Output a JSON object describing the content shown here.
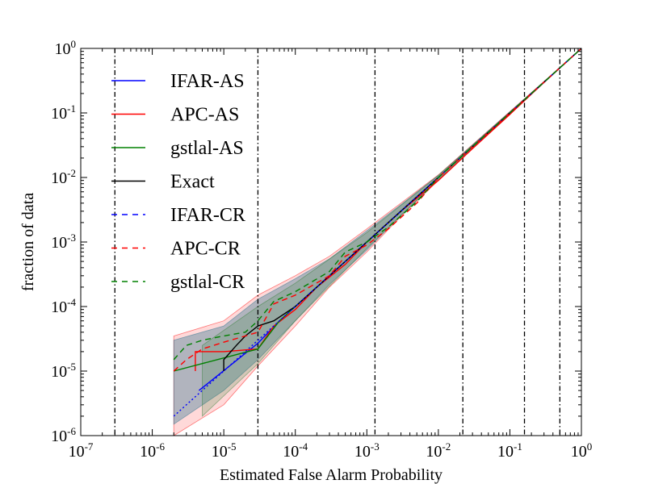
{
  "chart_data": {
    "type": "line",
    "title": "",
    "xlabel": "Estimated False Alarm Probability",
    "ylabel": "fraction of data",
    "xscale": "log",
    "yscale": "log",
    "xlim": [
      1e-07,
      1
    ],
    "ylim": [
      1e-06,
      1
    ],
    "grid": false,
    "legend_position": "upper-left",
    "x_ticks": [
      {
        "base": "10",
        "exp": "-7",
        "value": 1e-07
      },
      {
        "base": "10",
        "exp": "-6",
        "value": 1e-06
      },
      {
        "base": "10",
        "exp": "-5",
        "value": 1e-05
      },
      {
        "base": "10",
        "exp": "-4",
        "value": 0.0001
      },
      {
        "base": "10",
        "exp": "-3",
        "value": 0.001
      },
      {
        "base": "10",
        "exp": "-2",
        "value": 0.01
      },
      {
        "base": "10",
        "exp": "-1",
        "value": 0.1
      },
      {
        "base": "10",
        "exp": "0",
        "value": 1
      }
    ],
    "y_ticks": [
      {
        "base": "10",
        "exp": "-6",
        "value": 1e-06
      },
      {
        "base": "10",
        "exp": "-5",
        "value": 1e-05
      },
      {
        "base": "10",
        "exp": "-4",
        "value": 0.0001
      },
      {
        "base": "10",
        "exp": "-3",
        "value": 0.001
      },
      {
        "base": "10",
        "exp": "-2",
        "value": 0.01
      },
      {
        "base": "10",
        "exp": "-1",
        "value": 0.1
      },
      {
        "base": "10",
        "exp": "0",
        "value": 1
      }
    ],
    "vertical_lines": [
      3e-07,
      3e-05,
      0.0013,
      0.022,
      0.16,
      0.5
    ],
    "series": [
      {
        "name": "IFAR-AS",
        "color": "#0000ff",
        "dash": "solid",
        "x": [
          4.5e-06,
          3e-05,
          6e-05,
          0.0001,
          0.0002,
          0.0005,
          0.001,
          0.003,
          0.01,
          0.03,
          0.1,
          0.3,
          1
        ],
        "y": [
          5e-06,
          2.7e-05,
          6e-05,
          0.0001,
          0.0002,
          0.0005,
          0.001,
          0.003,
          0.01,
          0.03,
          0.1,
          0.3,
          1
        ]
      },
      {
        "name": "APC-AS",
        "color": "#ff0000",
        "dash": "solid",
        "x": [
          4e-06,
          4e-06,
          1e-05,
          3e-05,
          5e-05,
          0.0001,
          0.0002,
          0.0005,
          0.001,
          0.003,
          0.01,
          0.03,
          0.1,
          0.3,
          1
        ],
        "y": [
          1e-05,
          2e-05,
          2e-05,
          2.2e-05,
          5e-05,
          9e-05,
          0.0002,
          0.00045,
          0.001,
          0.003,
          0.009,
          0.028,
          0.095,
          0.3,
          1
        ]
      },
      {
        "name": "gstlal-AS",
        "color": "#008000",
        "dash": "solid",
        "x": [
          2e-06,
          3e-05,
          6e-05,
          0.0001,
          0.0002,
          0.0005,
          0.001,
          0.003,
          0.01,
          0.03,
          0.1,
          0.3,
          1
        ],
        "y": [
          1e-05,
          2.2e-05,
          6e-05,
          0.0001,
          0.0002,
          0.0005,
          0.001,
          0.003,
          0.01,
          0.03,
          0.1,
          0.3,
          1
        ]
      },
      {
        "name": "Exact",
        "color": "#000000",
        "dash": "solid",
        "x": [
          1e-05,
          1e-05,
          1.5e-05,
          2e-05,
          3e-05,
          5e-05,
          0.0001,
          0.0002,
          0.0005,
          0.001,
          0.003,
          0.01,
          0.03,
          0.1,
          0.3,
          1
        ],
        "y": [
          1e-05,
          1.5e-05,
          2.5e-05,
          3.5e-05,
          5e-05,
          6e-05,
          0.0001,
          0.0002,
          0.0005,
          0.001,
          0.003,
          0.01,
          0.03,
          0.1,
          0.3,
          1
        ]
      },
      {
        "name": "IFAR-CR",
        "color": "#0000ff",
        "dash": "dotted",
        "x": [
          2e-06,
          1e-05,
          3e-05,
          0.0001,
          0.001,
          0.01,
          0.1,
          1
        ],
        "y": [
          2e-06,
          1e-05,
          3e-05,
          0.0001,
          0.001,
          0.01,
          0.1,
          1
        ]
      },
      {
        "name": "APC-CR",
        "color": "#ff0000",
        "dash": "dashed",
        "x": [
          2e-06,
          3e-06,
          5e-06,
          1e-05,
          2e-05,
          3e-05,
          5e-05,
          0.0001,
          0.0003,
          0.0005,
          0.001,
          0.002,
          0.005,
          0.01,
          0.03,
          0.1,
          0.3,
          1
        ],
        "y": [
          1e-05,
          1.5e-05,
          2.2e-05,
          2.8e-05,
          3.5e-05,
          4e-05,
          0.00011,
          0.00015,
          0.0003,
          0.0006,
          0.0009,
          0.0016,
          0.004,
          0.01,
          0.03,
          0.1,
          0.3,
          1
        ]
      },
      {
        "name": "gstlal-CR",
        "color": "#008000",
        "dash": "dashed",
        "x": [
          2e-06,
          3e-06,
          5e-06,
          1e-05,
          2e-05,
          3e-05,
          5e-05,
          0.0001,
          0.0003,
          0.0005,
          0.001,
          0.002,
          0.005,
          0.01,
          0.03,
          0.1,
          0.3,
          1
        ],
        "y": [
          1.5e-05,
          2.5e-05,
          3e-05,
          3.5e-05,
          4e-05,
          6e-05,
          0.00012,
          0.00017,
          0.00035,
          0.0007,
          0.001,
          0.0017,
          0.0042,
          0.01,
          0.03,
          0.1,
          0.3,
          1
        ]
      }
    ],
    "bands": [
      {
        "color": "#ff0000",
        "opacity": 0.15,
        "x": [
          2e-06,
          1e-05,
          3e-05,
          0.0001,
          0.0003,
          0.001,
          0.003,
          0.01,
          0.1,
          1
        ],
        "lower": [
          1e-06,
          3e-06,
          1.2e-05,
          5e-05,
          0.0002,
          0.0007,
          0.0025,
          0.009,
          0.095,
          1
        ],
        "upper": [
          3.5e-05,
          6e-05,
          0.00015,
          0.0003,
          0.0006,
          0.0016,
          0.004,
          0.011,
          0.105,
          1
        ]
      },
      {
        "color": "#1f6f8b",
        "opacity": 0.35,
        "x": [
          2e-06,
          1e-05,
          3e-05,
          0.0001,
          0.0003,
          0.001,
          0.003,
          0.01,
          0.1,
          1
        ],
        "lower": [
          1.5e-06,
          5e-06,
          1.5e-05,
          6e-05,
          0.00022,
          0.00075,
          0.0026,
          0.0092,
          0.096,
          1
        ],
        "upper": [
          3e-05,
          5e-05,
          0.00013,
          0.00027,
          0.00055,
          0.0015,
          0.0038,
          0.0108,
          0.104,
          1
        ]
      },
      {
        "color": "#2e7d32",
        "opacity": 0.2,
        "x": [
          5e-06,
          3e-05,
          0.0001,
          0.001,
          0.01,
          0.1,
          1
        ],
        "lower": [
          2e-06,
          1.3e-05,
          6e-05,
          0.0008,
          0.0093,
          0.097,
          1
        ],
        "upper": [
          2.5e-05,
          0.0001,
          0.00023,
          0.0014,
          0.0107,
          0.103,
          1
        ]
      }
    ]
  }
}
